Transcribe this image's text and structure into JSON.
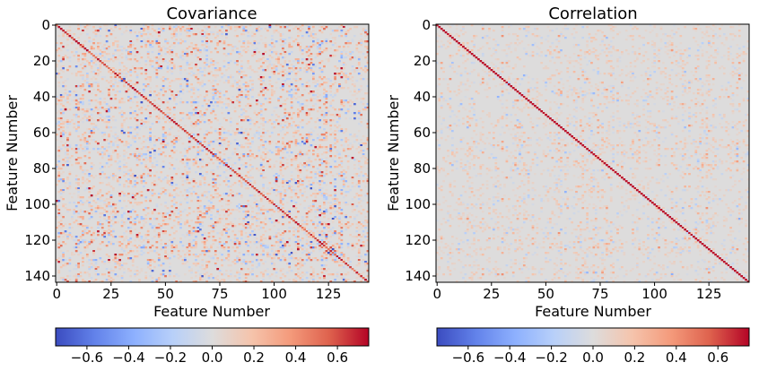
{
  "chart_data": [
    {
      "type": "heatmap",
      "title": "Covariance",
      "xlabel": "Feature Number",
      "ylabel": "Feature Number",
      "n": 144,
      "x_ticks": [
        0,
        25,
        50,
        75,
        100,
        125
      ],
      "y_ticks": [
        0,
        20,
        40,
        60,
        80,
        100,
        120,
        140
      ],
      "colormap": "coolwarm",
      "vmin": -0.75,
      "vmax": 0.75,
      "diagonal": "dark red (~0.7), off-diagonal mostly near 0 with scattered positive and negative values",
      "colorbar_ticks": [
        "−0.6",
        "−0.4",
        "−0.2",
        "0.0",
        "0.2",
        "0.4",
        "0.6"
      ]
    },
    {
      "type": "heatmap",
      "title": "Correlation",
      "xlabel": "Feature Number",
      "ylabel": "Feature Number",
      "n": 144,
      "x_ticks": [
        0,
        25,
        50,
        75,
        100,
        125
      ],
      "y_ticks": [
        0,
        20,
        40,
        60,
        80,
        100,
        120,
        140
      ],
      "colormap": "coolwarm",
      "vmin": -0.75,
      "vmax": 0.75,
      "diagonal": "dark red (~0.7), off-diagonal mostly near 0 with scattered small positive values",
      "colorbar_ticks": [
        "−0.6",
        "−0.4",
        "−0.2",
        "0.0",
        "0.2",
        "0.4",
        "0.6"
      ]
    }
  ],
  "colors": {
    "cold": "#3b4cc0",
    "neutral": "#dddcdc",
    "hot": "#b40426"
  }
}
